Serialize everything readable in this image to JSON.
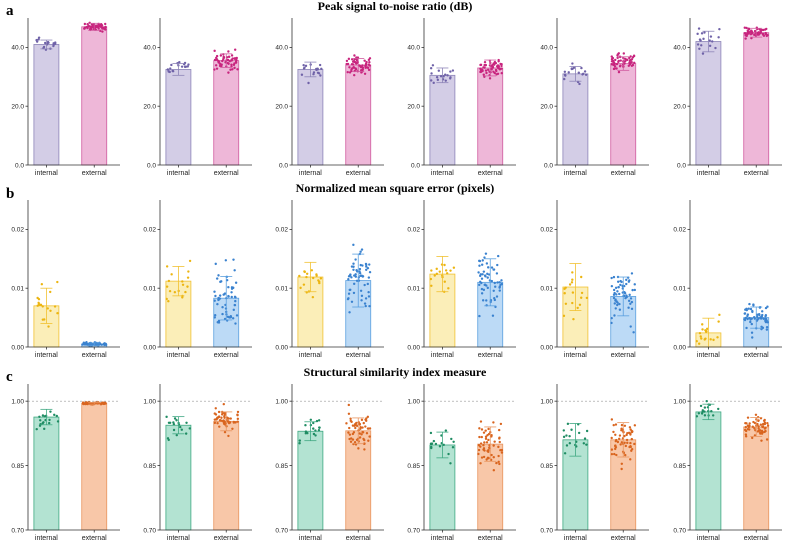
{
  "chart_data": {
    "type": "bar",
    "categories": [
      "internal",
      "external"
    ],
    "rows": [
      {
        "letter": "a",
        "title": "Peak signal to-noise ratio (dB)",
        "ylim": [
          0,
          50
        ],
        "yticks": [
          0,
          20,
          40
        ],
        "tick_labels": [
          "0.0",
          "20.0",
          "40.0"
        ],
        "reference_line": null,
        "internal_color": "#d3cde6",
        "internal_edge": "#8d84b8",
        "internal_point": "#6f62a8",
        "external_color": "#eeb7d8",
        "external_edge": "#d05a9e",
        "external_point": "#c8257e",
        "panels": [
          {
            "values": [
              41.0,
              47.0
            ],
            "errors": [
              1.5,
              1.2
            ],
            "spread": [
              2.0,
              1.0
            ],
            "n": [
              18,
              60
            ]
          },
          {
            "values": [
              32.5,
              35.5
            ],
            "errors": [
              2.0,
              2.3
            ],
            "spread": [
              2.5,
              2.5
            ],
            "n": [
              18,
              60
            ]
          },
          {
            "values": [
              32.5,
              34.0
            ],
            "errors": [
              2.5,
              2.2
            ],
            "spread": [
              2.5,
              2.5
            ],
            "n": [
              18,
              60
            ]
          },
          {
            "values": [
              30.5,
              33.0
            ],
            "errors": [
              2.5,
              2.7
            ],
            "spread": [
              2.5,
              2.5
            ],
            "n": [
              18,
              60
            ]
          },
          {
            "values": [
              31.0,
              34.5
            ],
            "errors": [
              2.5,
              2.3
            ],
            "spread": [
              2.5,
              2.5
            ],
            "n": [
              18,
              60
            ]
          },
          {
            "values": [
              42.0,
              45.0
            ],
            "errors": [
              3.5,
              1.5
            ],
            "spread": [
              3.5,
              1.5
            ],
            "n": [
              18,
              60
            ]
          }
        ]
      },
      {
        "letter": "b",
        "title": "Normalized mean square error (pixels)",
        "ylim": [
          0,
          0.025
        ],
        "yticks": [
          0,
          0.01,
          0.02
        ],
        "tick_labels": [
          "0.00",
          "0.01",
          "0.02"
        ],
        "reference_line": null,
        "internal_color": "#fbeeb8",
        "internal_edge": "#f1c232",
        "internal_point": "#ecb511",
        "external_color": "#bcdaf6",
        "external_edge": "#5a9fdf",
        "external_point": "#3a82cf",
        "panels": [
          {
            "values": [
              0.007,
              0.0005
            ],
            "errors": [
              0.003,
              0.0002
            ],
            "spread": [
              0.003,
              0.0002
            ],
            "n": [
              18,
              60
            ]
          },
          {
            "values": [
              0.0112,
              0.0083
            ],
            "errors": [
              0.0025,
              0.0037
            ],
            "spread": [
              0.0025,
              0.0037
            ],
            "n": [
              18,
              60
            ]
          },
          {
            "values": [
              0.0119,
              0.0113
            ],
            "errors": [
              0.0025,
              0.0045
            ],
            "spread": [
              0.0025,
              0.0045
            ],
            "n": [
              18,
              60
            ]
          },
          {
            "values": [
              0.0124,
              0.011
            ],
            "errors": [
              0.003,
              0.004
            ],
            "spread": [
              0.003,
              0.004
            ],
            "n": [
              18,
              60
            ]
          },
          {
            "values": [
              0.0102,
              0.0086
            ],
            "errors": [
              0.004,
              0.0033
            ],
            "spread": [
              0.004,
              0.0033
            ],
            "n": [
              18,
              60
            ]
          },
          {
            "values": [
              0.0024,
              0.005
            ],
            "errors": [
              0.0025,
              0.0018
            ],
            "spread": [
              0.0025,
              0.0018
            ],
            "n": [
              18,
              60
            ]
          }
        ]
      },
      {
        "letter": "c",
        "title": "Structural similarity index measure",
        "ylim": [
          0.7,
          1.04
        ],
        "yticks": [
          0.7,
          0.85,
          1.0
        ],
        "tick_labels": [
          "0.70",
          "0.85",
          "1.00"
        ],
        "reference_line": 1.0,
        "internal_color": "#b3e3d2",
        "internal_edge": "#3fa882",
        "internal_point": "#1f8c63",
        "external_color": "#f8c7a8",
        "external_edge": "#e8945e",
        "external_point": "#d9651f",
        "panels": [
          {
            "values": [
              0.963,
              0.995
            ],
            "errors": [
              0.018,
              0.002
            ],
            "spread": [
              0.018,
              0.002
            ],
            "n": [
              18,
              60
            ]
          },
          {
            "values": [
              0.944,
              0.953
            ],
            "errors": [
              0.02,
              0.022
            ],
            "spread": [
              0.02,
              0.022
            ],
            "n": [
              18,
              60
            ]
          },
          {
            "values": [
              0.93,
              0.931
            ],
            "errors": [
              0.022,
              0.03
            ],
            "spread": [
              0.022,
              0.03
            ],
            "n": [
              18,
              60
            ]
          },
          {
            "values": [
              0.898,
              0.9
            ],
            "errors": [
              0.03,
              0.04
            ],
            "spread": [
              0.03,
              0.04
            ],
            "n": [
              18,
              60
            ]
          },
          {
            "values": [
              0.91,
              0.91
            ],
            "errors": [
              0.038,
              0.04
            ],
            "spread": [
              0.038,
              0.04
            ],
            "n": [
              18,
              60
            ]
          },
          {
            "values": [
              0.975,
              0.94
            ],
            "errors": [
              0.018,
              0.022
            ],
            "spread": [
              0.018,
              0.022
            ],
            "n": [
              18,
              60
            ]
          }
        ]
      }
    ]
  }
}
